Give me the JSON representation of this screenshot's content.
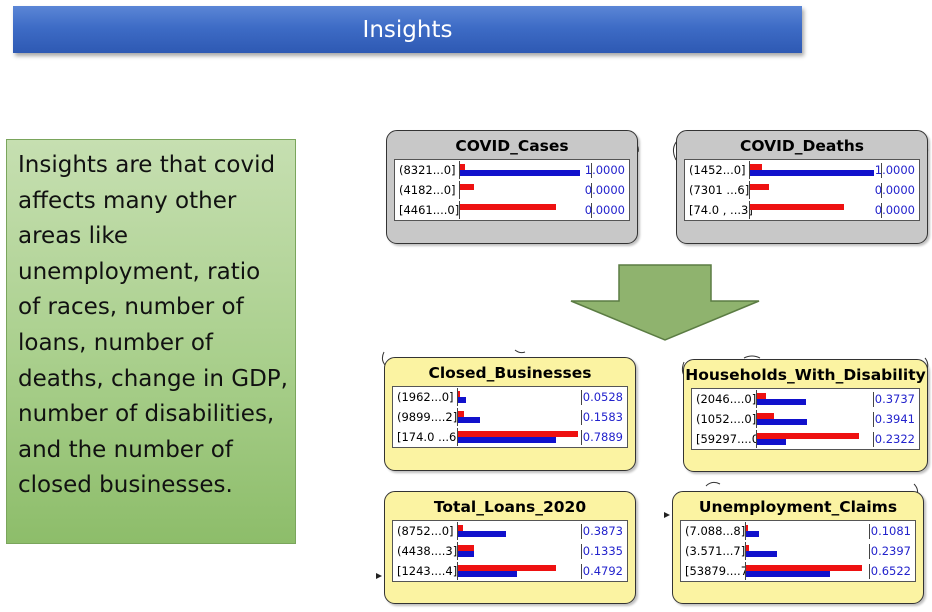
{
  "slide": {
    "title": "Insights",
    "insight_text": "Insights are that covid affects many other areas like unemployment, ratio of races, number of loans, number of deaths, change in GDP, number of disabilities, and the number of closed businesses."
  },
  "colors": {
    "title_bar": "#3e6cc6",
    "insight_box": "#a9cf8c",
    "node_gray": "#c8c8c8",
    "node_yellow": "#fbf3a2",
    "bar_red": "#ee1111",
    "bar_blue": "#1111cc",
    "arrow_fill": "#8fb36e"
  },
  "nodes": [
    {
      "title": "COVID_Cases",
      "style": "gray",
      "states": [
        {
          "label": "(8321...0]",
          "red": 0.04,
          "blue": 1.0,
          "value": "1.0000"
        },
        {
          "label": "(4182...0]",
          "red": 0.12,
          "blue": 0.0,
          "value": "0.0000"
        },
        {
          "label": "[4461....0]",
          "red": 0.8,
          "blue": 0.0,
          "value": "0.0000"
        }
      ]
    },
    {
      "title": "COVID_Deaths",
      "style": "gray",
      "states": [
        {
          "label": "(1452...0]",
          "red": 0.1,
          "blue": 1.0,
          "value": "1.0000"
        },
        {
          "label": "(7301 ...6]",
          "red": 0.15,
          "blue": 0.0,
          "value": "0.0000"
        },
        {
          "label": "[74.0 , ...3]",
          "red": 0.76,
          "blue": 0.0,
          "value": "0.0000"
        }
      ]
    },
    {
      "title": "Closed_Businesses",
      "style": "yellow",
      "states": [
        {
          "label": "(1962...0]",
          "red": 0.02,
          "blue": 0.07,
          "value": "0.0528"
        },
        {
          "label": "(9899....2]",
          "red": 0.05,
          "blue": 0.18,
          "value": "0.1583"
        },
        {
          "label": "[174.0 ...6]",
          "red": 1.0,
          "blue": 0.82,
          "value": "0.7889"
        }
      ]
    },
    {
      "title": "Households_With_Disability",
      "style": "yellow",
      "states": [
        {
          "label": "(2046....0]",
          "red": 0.09,
          "blue": 0.47,
          "value": "0.3737"
        },
        {
          "label": "(1052....0]",
          "red": 0.16,
          "blue": 0.48,
          "value": "0.3941"
        },
        {
          "label": "[59297....0]",
          "red": 0.98,
          "blue": 0.28,
          "value": "0.2322"
        }
      ]
    },
    {
      "title": "Total_Loans_2020",
      "style": "yellow",
      "states": [
        {
          "label": "(8752...0]",
          "red": 0.05,
          "blue": 0.48,
          "value": "0.3873"
        },
        {
          "label": "(4438....3]",
          "red": 0.16,
          "blue": 0.16,
          "value": "0.1335"
        },
        {
          "label": "[1243....4]",
          "red": 0.98,
          "blue": 0.59,
          "value": "0.4792"
        }
      ]
    },
    {
      "title": "Unemployment_Claims",
      "style": "yellow",
      "states": [
        {
          "label": "(7.088...8]",
          "red": 0.02,
          "blue": 0.11,
          "value": "0.1081"
        },
        {
          "label": "(3.571...7]",
          "red": 0.03,
          "blue": 0.27,
          "value": "0.2397"
        },
        {
          "label": "[53879....7]",
          "red": 1.0,
          "blue": 0.72,
          "value": "0.6522"
        }
      ]
    }
  ]
}
